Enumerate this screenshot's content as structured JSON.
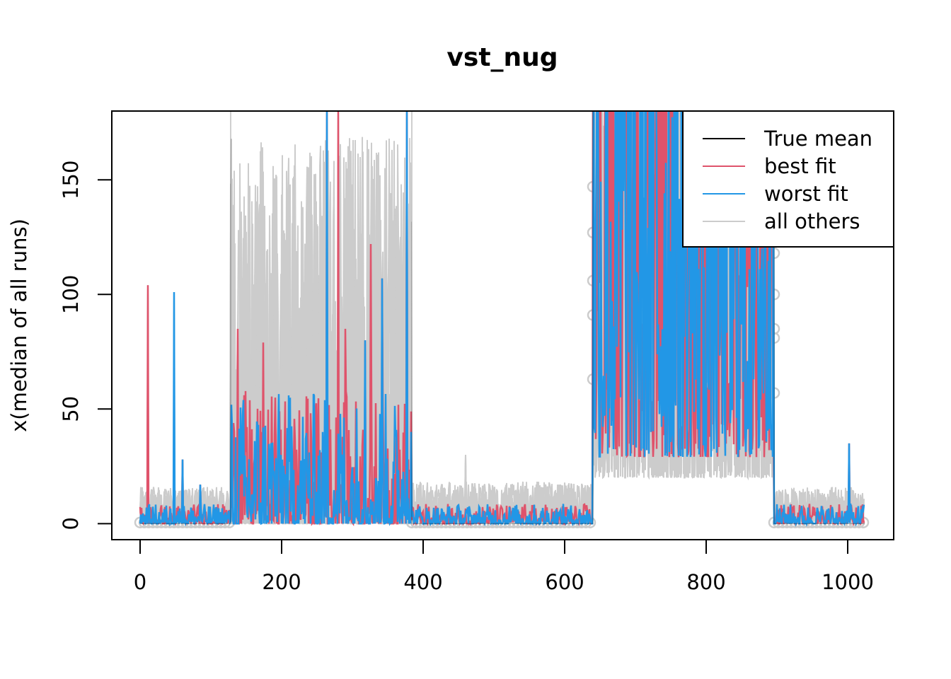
{
  "chart_data": {
    "type": "line",
    "title": "vst_nug",
    "xlabel": "",
    "ylabel": "x(median of all runs)",
    "xlim": [
      -40,
      1065
    ],
    "ylim": [
      -7,
      180
    ],
    "x_ticks": [
      0,
      200,
      400,
      600,
      800,
      1000
    ],
    "x_tick_labels": [
      "0",
      "200",
      "400",
      "600",
      "800",
      "1000"
    ],
    "y_ticks": [
      0,
      50,
      100,
      150
    ],
    "y_tick_labels": [
      "0",
      "50",
      "100",
      "150"
    ],
    "n_points": 1024,
    "grid": false,
    "legend_position": "top-right",
    "legend": [
      {
        "label": "True mean",
        "color": "#000000"
      },
      {
        "label": "best fit",
        "color": "#DF536B"
      },
      {
        "label": "worst fit",
        "color": "#2297E6"
      },
      {
        "label": "all others",
        "color": "#CCCCCC"
      }
    ],
    "segments": [
      {
        "x_start": 0,
        "x_end": 128,
        "others_level": 4,
        "others_spread": 5,
        "fit_level": 1.5,
        "fit_spread": 3,
        "notable_peaks": [
          {
            "x": 11,
            "y": 104
          },
          {
            "x": 48,
            "y": 101
          },
          {
            "x": 60,
            "y": 28
          },
          {
            "x": 85,
            "y": 17
          }
        ]
      },
      {
        "x_start": 128,
        "x_end": 384,
        "others_level": 25,
        "others_spread": 60,
        "fit_level": 10,
        "fit_spread": 20,
        "notable_peaks": [
          {
            "x": 138,
            "y": 85
          },
          {
            "x": 174,
            "y": 79
          },
          {
            "x": 264,
            "y": 180
          },
          {
            "x": 280,
            "y": 180
          },
          {
            "x": 290,
            "y": 85
          },
          {
            "x": 318,
            "y": 80
          },
          {
            "x": 326,
            "y": 122
          },
          {
            "x": 342,
            "y": 107
          },
          {
            "x": 377,
            "y": 180
          }
        ]
      },
      {
        "x_start": 384,
        "x_end": 640,
        "others_level": 4,
        "others_spread": 6,
        "fit_level": 1.5,
        "fit_spread": 3,
        "notable_peaks": [
          {
            "x": 460,
            "y": 30
          },
          {
            "x": 640,
            "y": 26
          }
        ]
      },
      {
        "x_start": 640,
        "x_end": 896,
        "others_level": 80,
        "others_spread": 100,
        "fit_level": 95,
        "fit_spread": 110,
        "notable_peaks": []
      },
      {
        "x_start": 896,
        "x_end": 1024,
        "others_level": 4,
        "others_spread": 5,
        "fit_level": 1.5,
        "fit_spread": 3,
        "notable_peaks": [
          {
            "x": 1002,
            "y": 35
          }
        ]
      }
    ],
    "true_mean": {
      "low": 0,
      "high": 180,
      "switch_points": [
        128,
        384,
        640,
        896
      ]
    },
    "marker_points": {
      "color": "#CCCCCC",
      "y_low": 0.5,
      "high_segment_y": [
        147,
        127,
        106,
        91,
        63,
        118,
        100,
        85,
        81,
        57
      ]
    }
  }
}
